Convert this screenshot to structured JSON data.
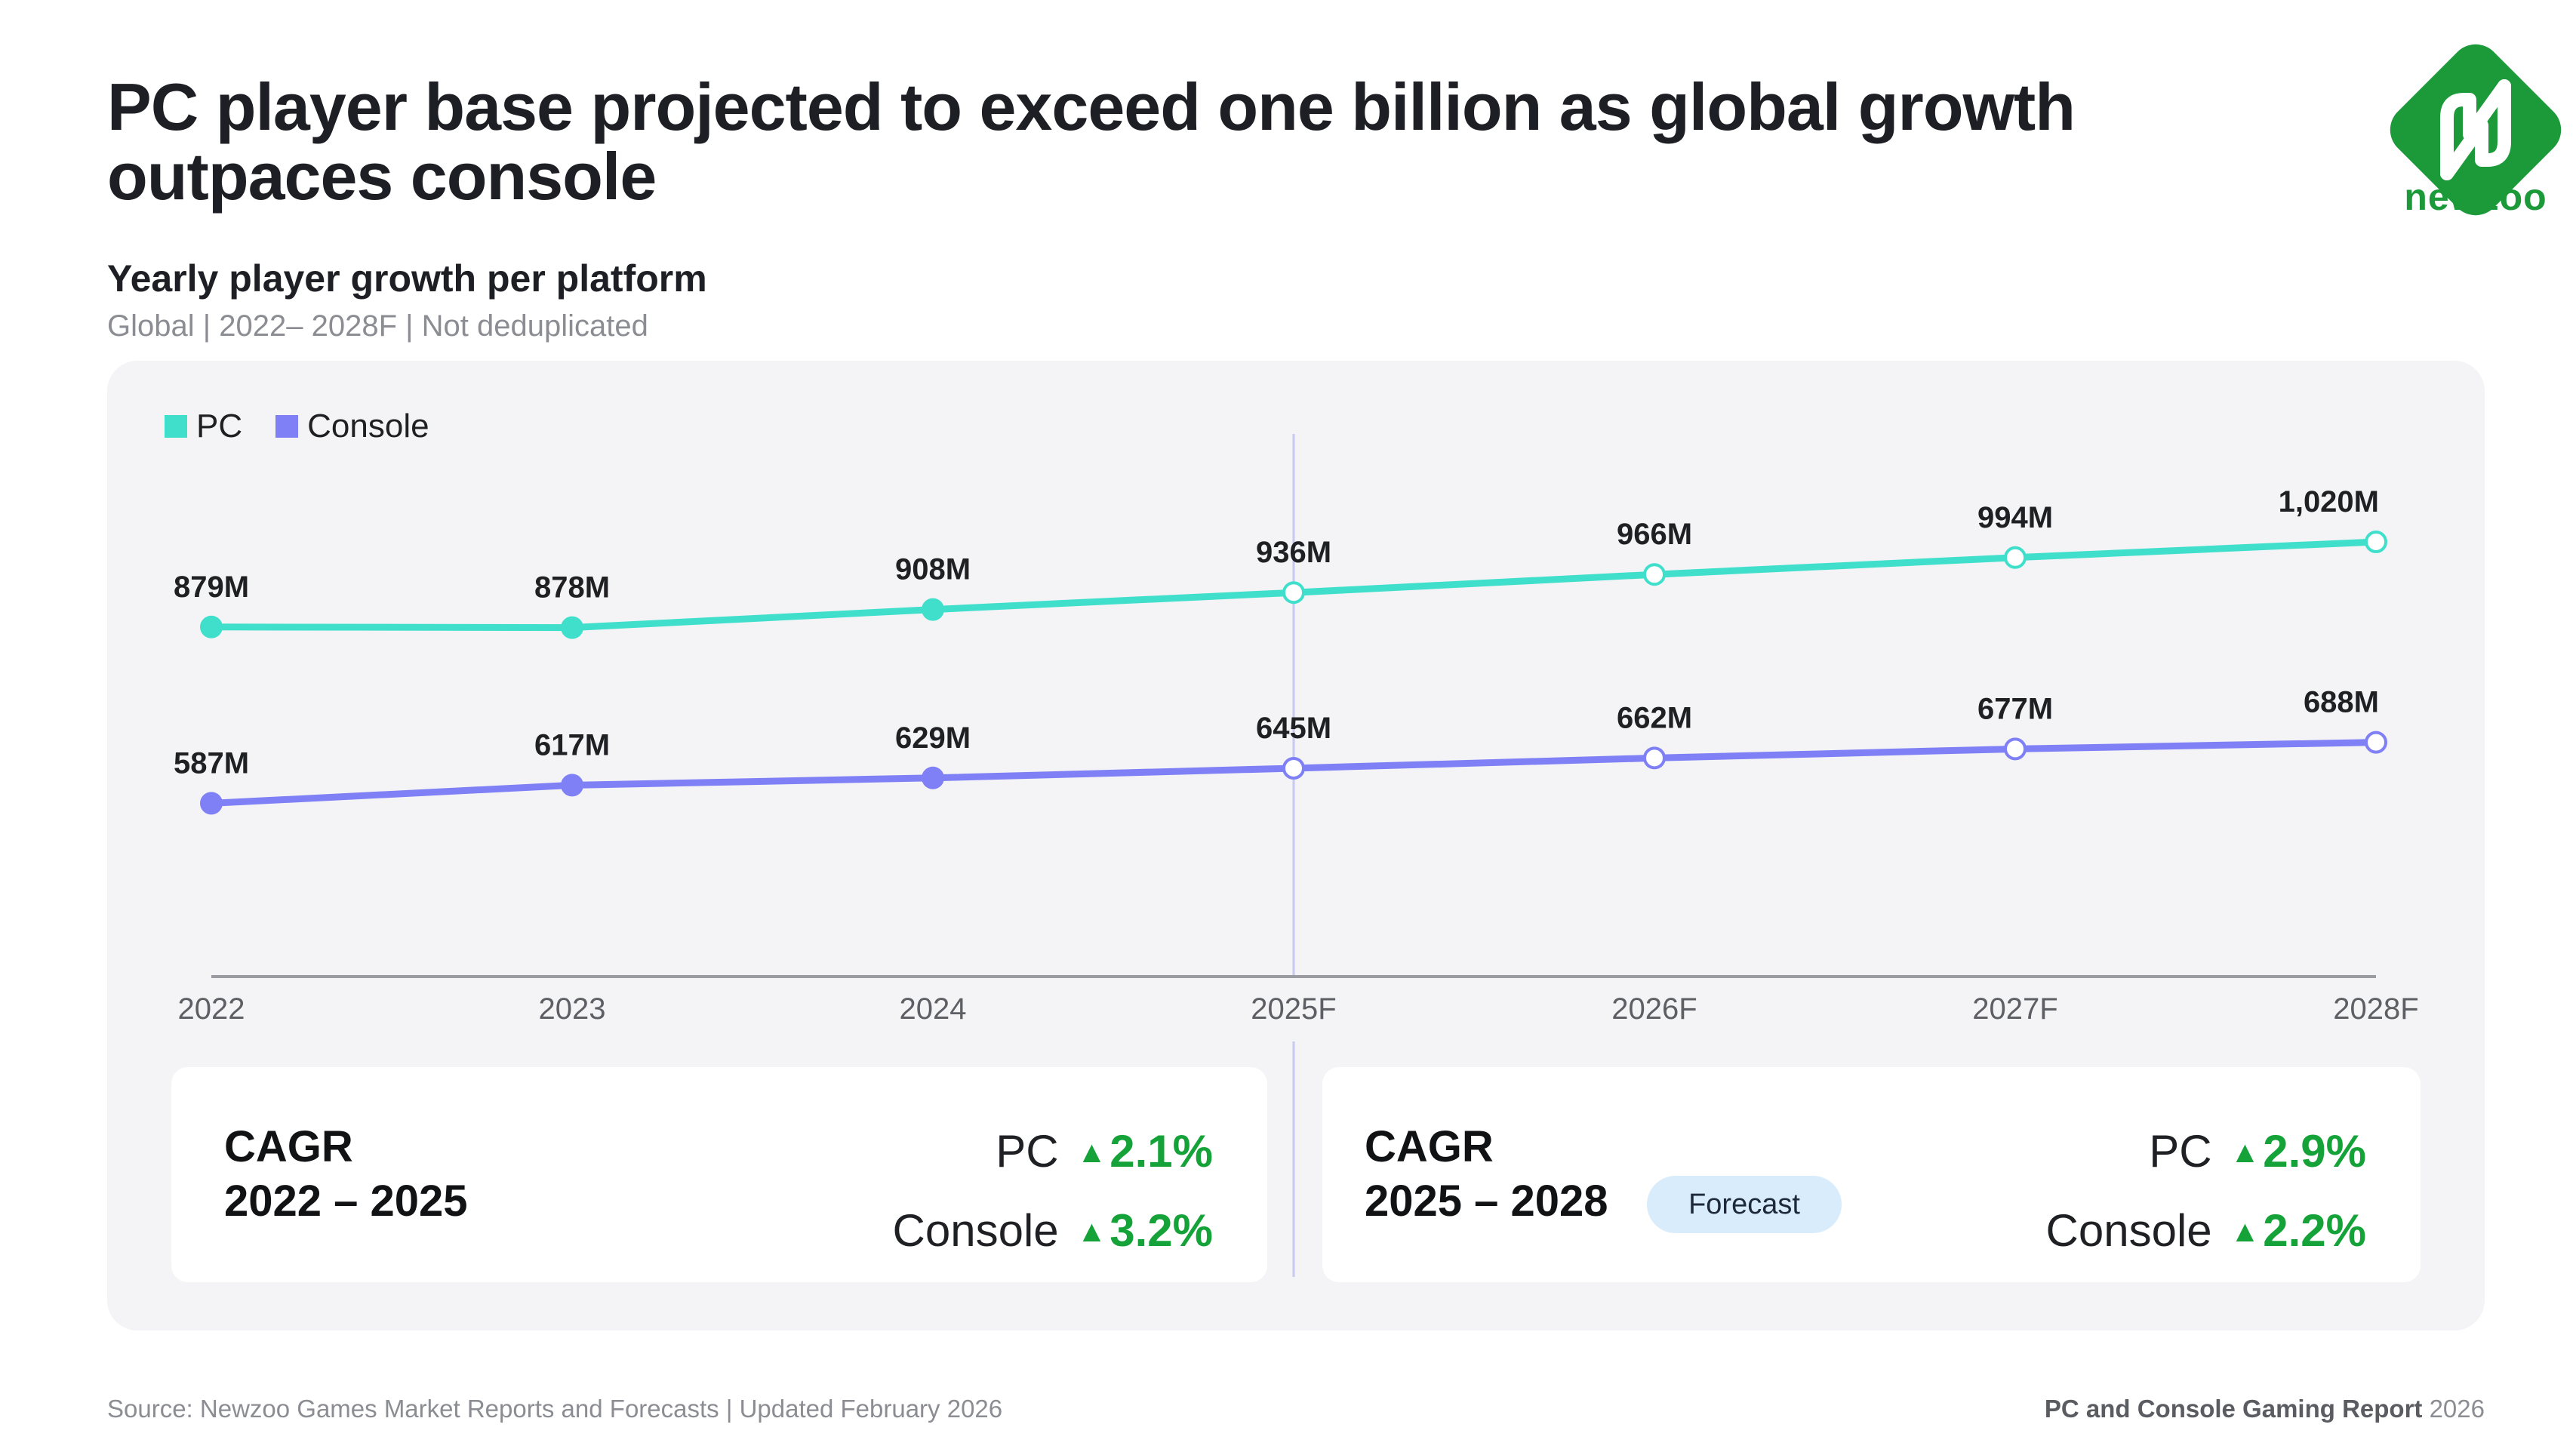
{
  "header": {
    "title": "PC player base projected to exceed one billion as global growth outpaces console",
    "subtitle": "Yearly player growth per platform",
    "scope": "Global | 2022– 2028F | Not deduplicated",
    "logo_text": "newzoo"
  },
  "colors": {
    "pc": "#40dfcc",
    "console": "#7f80f5",
    "growth": "#15a339",
    "brand": "#1c9a3a"
  },
  "chart_data": {
    "type": "line",
    "categories": [
      "2022",
      "2023",
      "2024",
      "2025F",
      "2026F",
      "2027F",
      "2028F"
    ],
    "series": [
      {
        "name": "PC",
        "values": [
          879,
          878,
          908,
          936,
          966,
          994,
          1020
        ],
        "labels": [
          "879M",
          "878M",
          "908M",
          "936M",
          "966M",
          "994M",
          "1,020M"
        ]
      },
      {
        "name": "Console",
        "values": [
          587,
          617,
          629,
          645,
          662,
          677,
          688
        ],
        "labels": [
          "587M",
          "617M",
          "629M",
          "645M",
          "662M",
          "677M",
          "688M"
        ]
      }
    ],
    "forecast_start": "2025F",
    "y_unit": "M",
    "legend_position": "top-left",
    "grid": false
  },
  "cagr": [
    {
      "label_line1": "CAGR",
      "label_line2": "2022 – 2025",
      "badge": "",
      "pc_label": "PC",
      "pc_value": "2.1%",
      "console_label": "Console",
      "console_value": "3.2%"
    },
    {
      "label_line1": "CAGR",
      "label_line2": "2025 – 2028",
      "badge": "Forecast",
      "pc_label": "PC",
      "pc_value": "2.9%",
      "console_label": "Console",
      "console_value": "2.2%"
    }
  ],
  "footer": {
    "source": "Source: Newzoo Games Market Reports and Forecasts | Updated February 2026",
    "report_bold": "PC and Console Gaming Report",
    "report_year": "2026"
  }
}
